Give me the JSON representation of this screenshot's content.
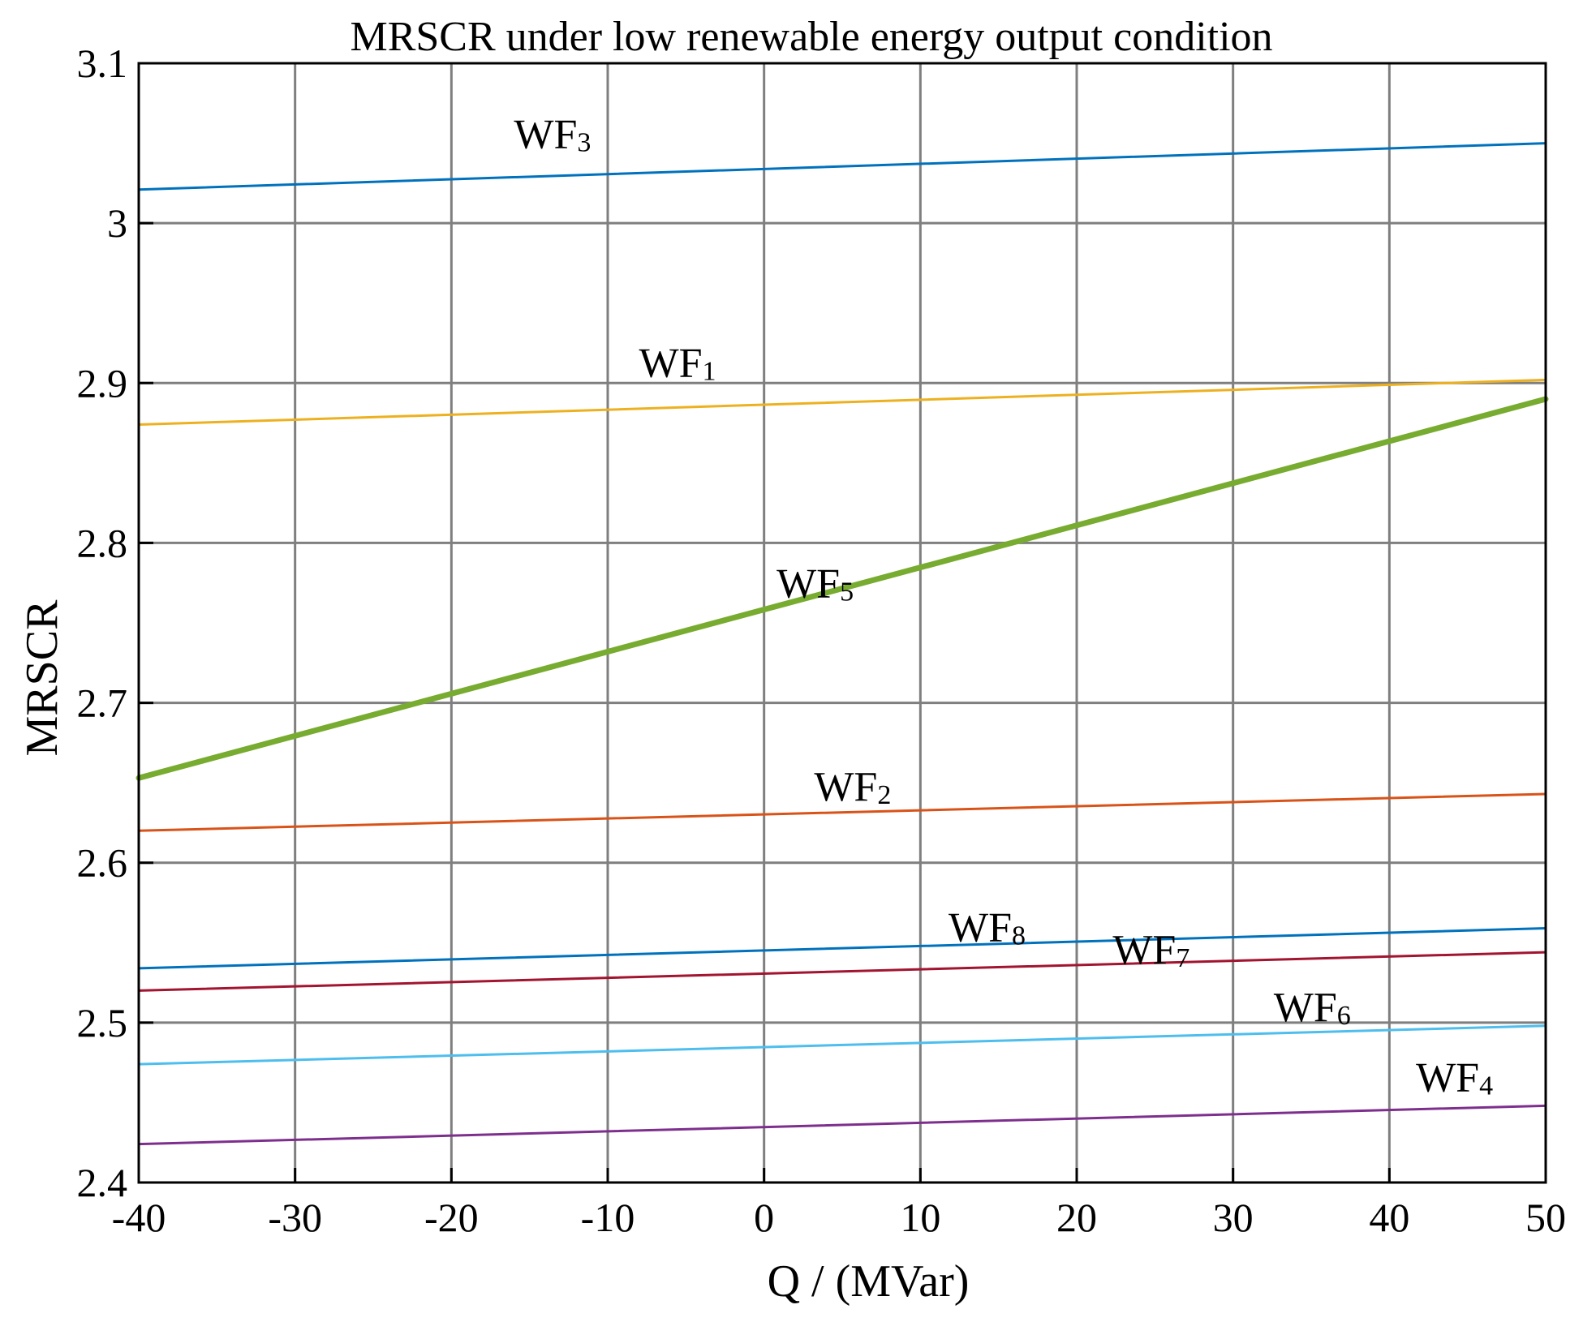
{
  "chart_data": {
    "type": "line",
    "title": "MRSCR under low renewable energy output condition",
    "xlabel": "Q / (MVar)",
    "ylabel": "MRSCR",
    "xlim": [
      -40,
      50
    ],
    "ylim": [
      2.4,
      3.1
    ],
    "xticks": [
      -40,
      -30,
      -20,
      -10,
      0,
      10,
      20,
      30,
      40,
      50
    ],
    "xtick_labels": [
      "-40",
      "-30",
      "-20",
      "-10",
      "0",
      "10",
      "20",
      "30",
      "40",
      "50"
    ],
    "yticks": [
      2.4,
      2.5,
      2.6,
      2.7,
      2.8,
      2.9,
      3.0,
      3.1
    ],
    "ytick_labels": [
      "2.4",
      "2.5",
      "2.6",
      "2.7",
      "2.8",
      "2.9",
      "3",
      "3.1"
    ],
    "grid": true,
    "series": [
      {
        "name": "WF3",
        "base": "WF",
        "sub": "3",
        "color": "#0072BD",
        "width": 3,
        "x": [
          -40,
          50
        ],
        "values": [
          3.021,
          3.05
        ],
        "label_at": [
          -16,
          3.047
        ]
      },
      {
        "name": "WF1",
        "base": "WF",
        "sub": "1",
        "color": "#EDB120",
        "width": 3,
        "x": [
          -40,
          50
        ],
        "values": [
          2.874,
          2.902
        ],
        "label_at": [
          -8,
          2.904
        ]
      },
      {
        "name": "WF5",
        "base": "WF",
        "sub": "5",
        "color": "#77AC30",
        "width": 7,
        "x": [
          -40,
          50
        ],
        "values": [
          2.653,
          2.89
        ],
        "label_at": [
          0.8,
          2.766
        ]
      },
      {
        "name": "WF2",
        "base": "WF",
        "sub": "2",
        "color": "#D95319",
        "width": 3,
        "x": [
          -40,
          50
        ],
        "values": [
          2.62,
          2.643
        ],
        "label_at": [
          3.2,
          2.639
        ]
      },
      {
        "name": "WF8",
        "base": "WF",
        "sub": "8",
        "color": "#0072BD",
        "width": 3,
        "x": [
          -40,
          50
        ],
        "values": [
          2.534,
          2.559
        ],
        "label_at": [
          11.8,
          2.551
        ]
      },
      {
        "name": "WF7",
        "base": "WF",
        "sub": "7",
        "color": "#A2142F",
        "width": 3,
        "x": [
          -40,
          50
        ],
        "values": [
          2.52,
          2.544
        ],
        "label_at": [
          22.3,
          2.537
        ]
      },
      {
        "name": "WF6",
        "base": "WF",
        "sub": "6",
        "color": "#4DBEEE",
        "width": 3,
        "x": [
          -40,
          50
        ],
        "values": [
          2.474,
          2.498
        ],
        "label_at": [
          32.6,
          2.501
        ]
      },
      {
        "name": "WF4",
        "base": "WF",
        "sub": "4",
        "color": "#7E2F8E",
        "width": 3,
        "x": [
          -40,
          50
        ],
        "values": [
          2.424,
          2.448
        ],
        "label_at": [
          41.7,
          2.457
        ]
      }
    ]
  }
}
